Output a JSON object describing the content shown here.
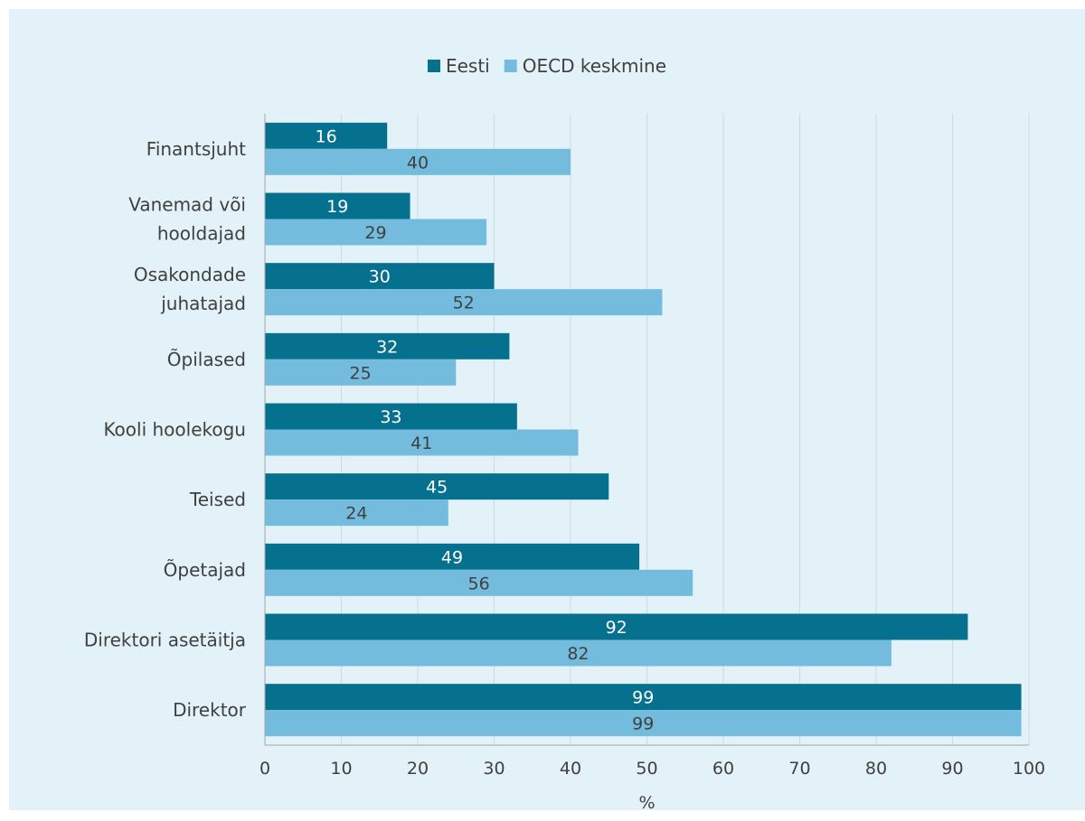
{
  "chart_data": {
    "type": "bar",
    "orientation": "horizontal",
    "categories": [
      "Finantsjuht",
      "Vanemad või hooldajad",
      "Osakondade juhatajad",
      "Õpilased",
      "Kooli hoolekogu",
      "Teised",
      "Õpetajad",
      "Direktori asetäitja",
      "Direktor"
    ],
    "category_lines": [
      [
        "Finantsjuht"
      ],
      [
        "Vanemad või",
        "hooldajad"
      ],
      [
        "Osakondade",
        "juhatajad"
      ],
      [
        "Õpilased"
      ],
      [
        "Kooli hoolekogu"
      ],
      [
        "Teised"
      ],
      [
        "Õpetajad"
      ],
      [
        "Direktori asetäitja"
      ],
      [
        "Direktor"
      ]
    ],
    "series": [
      {
        "name": "Eesti",
        "color": "#05718f",
        "label_color": "#ffffff",
        "values": [
          16,
          19,
          30,
          32,
          33,
          45,
          49,
          92,
          99
        ]
      },
      {
        "name": "OECD keskmine",
        "color": "#74bcdd",
        "label_color": "#404040",
        "values": [
          40,
          29,
          52,
          25,
          41,
          24,
          56,
          82,
          99
        ]
      }
    ],
    "xlabel": "%",
    "xlim": [
      0,
      100
    ],
    "xticks": [
      0,
      10,
      20,
      30,
      40,
      50,
      60,
      70,
      80,
      90,
      100
    ],
    "grid": true,
    "legend_position": "top-center",
    "data_labels": true
  }
}
